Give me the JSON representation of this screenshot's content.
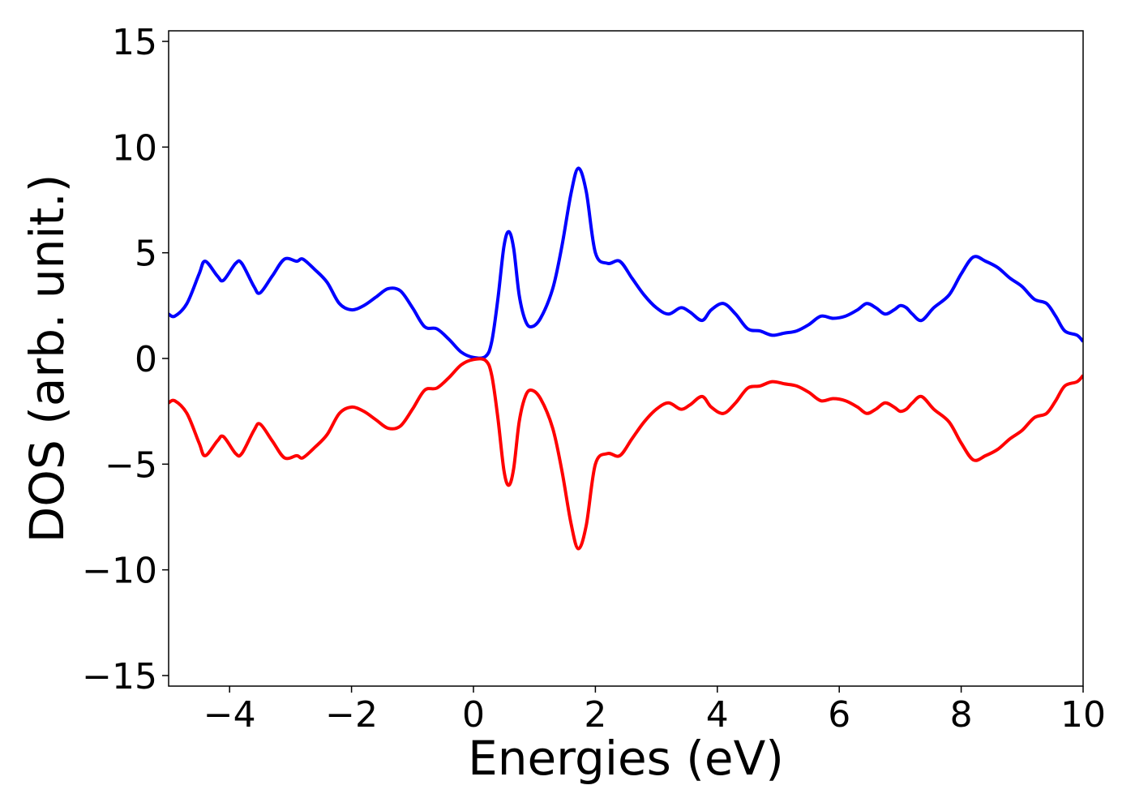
{
  "chart_data": {
    "type": "line",
    "xlabel": "Energies (eV)",
    "ylabel": "DOS (arb. unit.)",
    "x": [
      -5,
      -4.9,
      -4.7,
      -4.5,
      -4.4,
      -4.2,
      -4.1,
      -3.9,
      -3.8,
      -3.6,
      -3.5,
      -3.3,
      -3.1,
      -2.9,
      -2.8,
      -2.6,
      -2.4,
      -2.2,
      -2.0,
      -1.8,
      -1.6,
      -1.4,
      -1.2,
      -1.0,
      -0.8,
      -0.6,
      -0.4,
      -0.2,
      0,
      0.2,
      0.3,
      0.4,
      0.5,
      0.58,
      0.66,
      0.75,
      0.85,
      0.95,
      1.1,
      1.3,
      1.45,
      1.6,
      1.72,
      1.85,
      2.0,
      2.2,
      2.4,
      2.6,
      2.8,
      3.0,
      3.2,
      3.4,
      3.55,
      3.75,
      3.9,
      4.1,
      4.3,
      4.5,
      4.7,
      4.9,
      5.1,
      5.3,
      5.5,
      5.7,
      5.9,
      6.1,
      6.3,
      6.45,
      6.6,
      6.75,
      6.9,
      7.0,
      7.1,
      7.2,
      7.35,
      7.55,
      7.8,
      8.0,
      8.2,
      8.4,
      8.6,
      8.8,
      9.0,
      9.2,
      9.4,
      9.55,
      9.7,
      9.9,
      10
    ],
    "series": [
      {
        "color": "#0000ff",
        "values": [
          2.1,
          2.0,
          2.6,
          4.0,
          4.6,
          3.9,
          3.7,
          4.5,
          4.5,
          3.4,
          3.1,
          3.9,
          4.7,
          4.6,
          4.7,
          4.2,
          3.6,
          2.6,
          2.3,
          2.5,
          2.9,
          3.3,
          3.2,
          2.4,
          1.5,
          1.4,
          0.9,
          0.3,
          0.05,
          0.1,
          0.8,
          2.8,
          5.3,
          6.0,
          5.2,
          3.0,
          1.8,
          1.5,
          1.9,
          3.3,
          5.3,
          7.8,
          9.0,
          7.9,
          5.0,
          4.5,
          4.6,
          3.8,
          3.0,
          2.4,
          2.1,
          2.4,
          2.2,
          1.8,
          2.3,
          2.6,
          2.1,
          1.4,
          1.3,
          1.1,
          1.2,
          1.3,
          1.6,
          2.0,
          1.9,
          2.0,
          2.3,
          2.6,
          2.4,
          2.1,
          2.3,
          2.5,
          2.4,
          2.1,
          1.8,
          2.4,
          3.0,
          4.0,
          4.8,
          4.6,
          4.3,
          3.8,
          3.4,
          2.8,
          2.6,
          2.0,
          1.3,
          1.1,
          0.8
        ]
      },
      {
        "color": "#ff0000",
        "values": [
          -2.1,
          -2.0,
          -2.6,
          -4.0,
          -4.6,
          -3.9,
          -3.7,
          -4.5,
          -4.5,
          -3.4,
          -3.1,
          -3.9,
          -4.7,
          -4.6,
          -4.7,
          -4.2,
          -3.6,
          -2.6,
          -2.3,
          -2.5,
          -2.9,
          -3.3,
          -3.2,
          -2.4,
          -1.5,
          -1.4,
          -0.9,
          -0.3,
          -0.05,
          -0.1,
          -0.8,
          -2.8,
          -5.3,
          -6.0,
          -5.2,
          -3.0,
          -1.8,
          -1.5,
          -1.9,
          -3.3,
          -5.3,
          -7.8,
          -9.0,
          -7.9,
          -5.0,
          -4.5,
          -4.6,
          -3.8,
          -3.0,
          -2.4,
          -2.1,
          -2.4,
          -2.2,
          -1.8,
          -2.3,
          -2.6,
          -2.1,
          -1.4,
          -1.3,
          -1.1,
          -1.2,
          -1.3,
          -1.6,
          -2.0,
          -1.9,
          -2.0,
          -2.3,
          -2.6,
          -2.4,
          -2.1,
          -2.3,
          -2.5,
          -2.4,
          -2.1,
          -1.8,
          -2.4,
          -3.0,
          -4.0,
          -4.8,
          -4.6,
          -4.3,
          -3.8,
          -3.4,
          -2.8,
          -2.6,
          -2.0,
          -1.3,
          -1.1,
          -0.8
        ]
      }
    ],
    "xlim": [
      -5,
      10
    ],
    "xticks": [
      {
        "value": -4,
        "label": "−4"
      },
      {
        "value": -2,
        "label": "−2"
      },
      0,
      2,
      4,
      6,
      8,
      10
    ],
    "ylim": [
      -15.5,
      15.5
    ],
    "yticks": [
      {
        "value": -15,
        "label": "−15"
      },
      {
        "value": -10,
        "label": "−10"
      },
      {
        "value": -5,
        "label": "−5"
      },
      0,
      5,
      10,
      15
    ]
  }
}
